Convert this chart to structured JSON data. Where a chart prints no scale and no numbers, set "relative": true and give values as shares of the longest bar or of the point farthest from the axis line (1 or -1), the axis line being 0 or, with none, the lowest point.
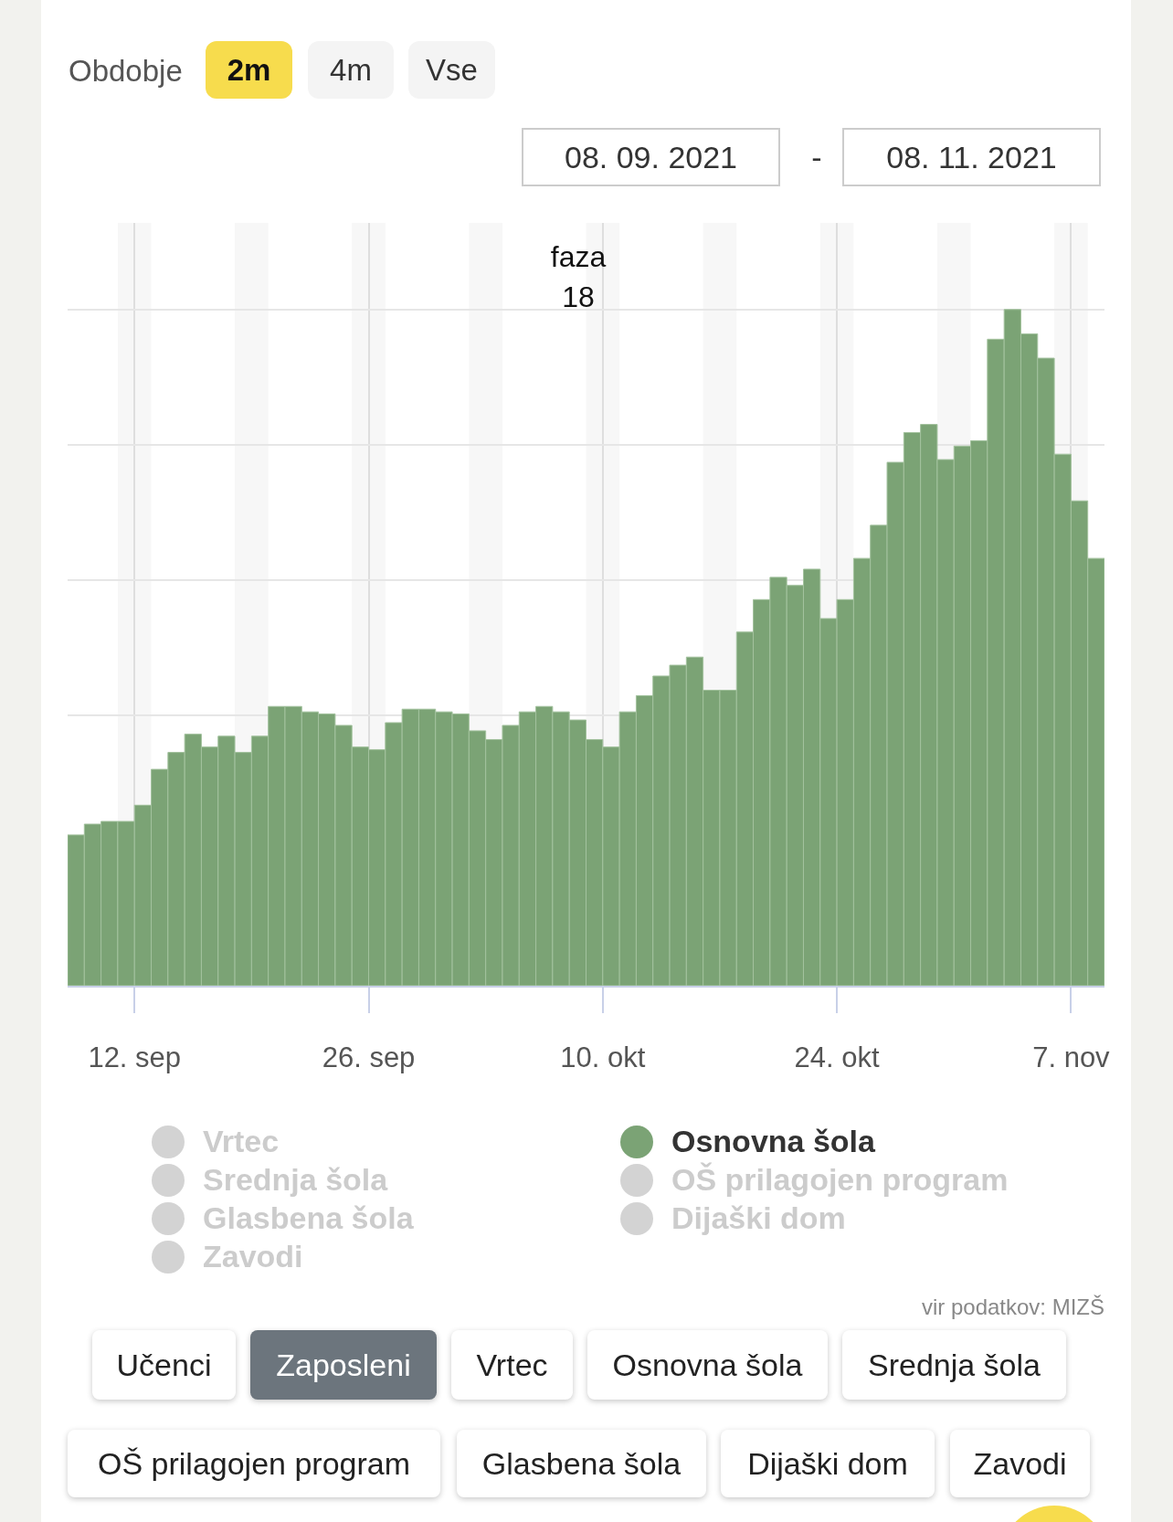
{
  "chart_data": {
    "type": "bar",
    "relative": true,
    "grid": true,
    "legend": "bottom",
    "x": [
      "2021-09-08T12:00",
      "2021-09-09T12:00",
      "2021-09-10T12:00",
      "2021-09-11T12:00",
      "2021-09-12T12:00",
      "2021-09-13T12:00",
      "2021-09-14T12:00",
      "2021-09-15T12:00",
      "2021-09-16T12:00",
      "2021-09-17T12:00",
      "2021-09-18T12:00",
      "2021-09-19T12:00",
      "2021-09-20T12:00",
      "2021-09-21T12:00",
      "2021-09-22T12:00",
      "2021-09-23T12:00",
      "2021-09-24T12:00",
      "2021-09-25T12:00",
      "2021-09-26T12:00",
      "2021-09-27T12:00",
      "2021-09-28T12:00",
      "2021-09-29T12:00",
      "2021-09-30T12:00",
      "2021-10-01T12:00",
      "2021-10-02T12:00",
      "2021-10-03T12:00",
      "2021-10-04T12:00",
      "2021-10-05T12:00",
      "2021-10-06T12:00",
      "2021-10-07T12:00",
      "2021-10-08T12:00",
      "2021-10-09T12:00",
      "2021-10-10T12:00",
      "2021-10-11T12:00",
      "2021-10-12T12:00",
      "2021-10-13T12:00",
      "2021-10-14T12:00",
      "2021-10-15T12:00",
      "2021-10-16T12:00",
      "2021-10-17T12:00",
      "2021-10-18T12:00",
      "2021-10-19T12:00",
      "2021-10-20T12:00",
      "2021-10-21T12:00",
      "2021-10-22T12:00",
      "2021-10-23T12:00",
      "2021-10-24T12:00",
      "2021-10-25T12:00",
      "2021-10-26T12:00",
      "2021-10-27T12:00",
      "2021-10-28T12:00",
      "2021-10-29T12:00",
      "2021-10-30T12:00",
      "2021-10-31T12:00",
      "2021-11-01T12:00",
      "2021-11-02T12:00",
      "2021-11-03T12:00",
      "2021-11-04T12:00",
      "2021-11-05T12:00",
      "2021-11-06T12:00",
      "2021-11-07T12:00",
      "2021-11-08T12:00"
    ],
    "series": [
      {
        "name": "Osnovna šola",
        "color": "#7ba375",
        "values": [
          0.223,
          0.239,
          0.243,
          0.243,
          0.267,
          0.32,
          0.345,
          0.372,
          0.353,
          0.369,
          0.345,
          0.369,
          0.413,
          0.413,
          0.405,
          0.402,
          0.385,
          0.353,
          0.349,
          0.389,
          0.409,
          0.409,
          0.405,
          0.402,
          0.377,
          0.364,
          0.385,
          0.405,
          0.413,
          0.405,
          0.393,
          0.364,
          0.353,
          0.405,
          0.429,
          0.458,
          0.474,
          0.486,
          0.437,
          0.437,
          0.523,
          0.571,
          0.604,
          0.592,
          0.616,
          0.543,
          0.571,
          0.632,
          0.681,
          0.774,
          0.818,
          0.83,
          0.778,
          0.798,
          0.806,
          0.956,
          1,
          0.964,
          0.928,
          0.786,
          0.717,
          0.632
        ]
      }
    ],
    "xlim": [
      "2021-09-08",
      "2021-11-09"
    ],
    "xticks": [
      {
        "value": "2021-09-12",
        "label": "12. sep"
      },
      {
        "value": "2021-09-26",
        "label": "26. sep"
      },
      {
        "value": "2021-10-10",
        "label": "10. okt"
      },
      {
        "value": "2021-10-24",
        "label": "24. okt"
      },
      {
        "value": "2021-11-07",
        "label": "7. nov"
      }
    ],
    "bands": [
      {
        "axis": "x",
        "from": "2021-09-11",
        "to": "2021-09-13",
        "color": "#f7f7f7"
      },
      {
        "axis": "x",
        "from": "2021-09-18",
        "to": "2021-09-20",
        "color": "#f7f7f7"
      },
      {
        "axis": "x",
        "from": "2021-09-25",
        "to": "2021-09-27",
        "color": "#f7f7f7"
      },
      {
        "axis": "x",
        "from": "2021-10-02",
        "to": "2021-10-04",
        "color": "#f7f7f7"
      },
      {
        "axis": "x",
        "from": "2021-10-09",
        "to": "2021-10-11",
        "color": "#f7f7f7"
      },
      {
        "axis": "x",
        "from": "2021-10-16",
        "to": "2021-10-18",
        "color": "#f7f7f7"
      },
      {
        "axis": "x",
        "from": "2021-10-23",
        "to": "2021-10-25",
        "color": "#f7f7f7"
      },
      {
        "axis": "x",
        "from": "2021-10-30",
        "to": "2021-11-01",
        "color": "#f7f7f7"
      },
      {
        "axis": "x",
        "from": "2021-11-06",
        "to": "2021-11-08",
        "color": "#f7f7f7"
      }
    ],
    "annotations": [
      "faza\n18",
      "Obdobje",
      "2m",
      "4m",
      "Vse",
      "08. 09. 2021",
      "-",
      "08. 11. 2021",
      "Vrtec",
      "Srednja šola",
      "Glasbena šola",
      "Zavodi",
      "OŠ prilagojen program",
      "Dijaški dom",
      "vir podatkov: MIZŠ",
      "Učenci",
      "Zaposleni",
      "Vrtec",
      "Osnovna šola",
      "Srednja šola",
      "OŠ prilagojen program",
      "Glasbena šola",
      "Dijaški dom",
      "Zavodi"
    ]
  }
}
